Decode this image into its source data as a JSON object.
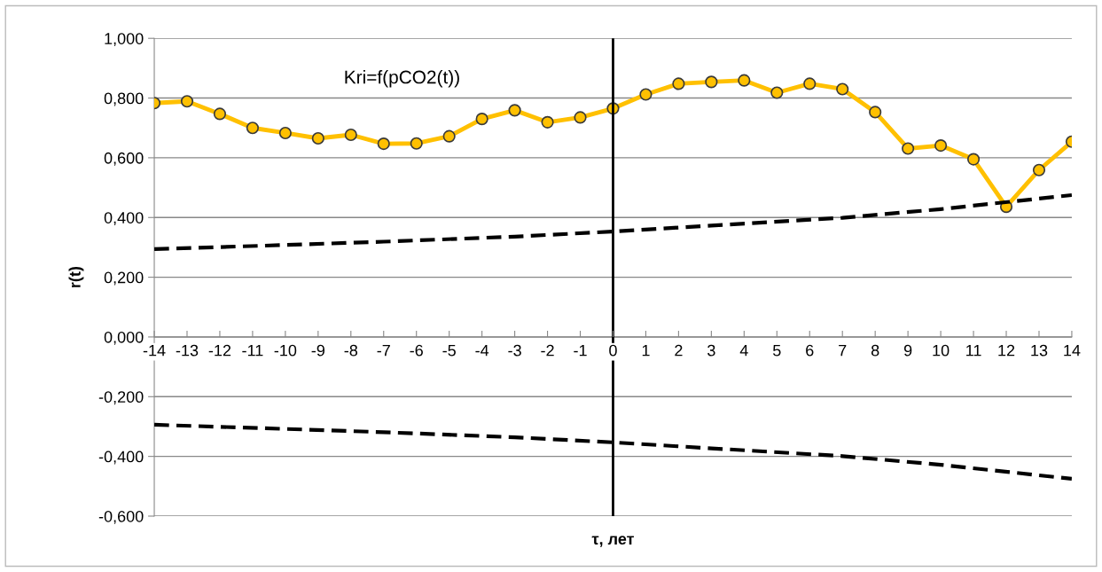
{
  "chart_data": {
    "type": "line",
    "title": "Kri=f(pCO2(t))",
    "xlabel": "τ, лет",
    "ylabel": "r(t)",
    "series": [
      {
        "color": "#ffc000",
        "marker": "circle",
        "line_style": "solid",
        "x": [
          -14,
          -13,
          -12,
          -11,
          -10,
          -9,
          -8,
          -7,
          -6,
          -5,
          -4,
          -3,
          -2,
          -1,
          0,
          1,
          2,
          3,
          4,
          5,
          6,
          7,
          8,
          9,
          10,
          11,
          12,
          13,
          14
        ],
        "values": [
          0.783,
          0.789,
          0.747,
          0.7,
          0.683,
          0.665,
          0.677,
          0.647,
          0.648,
          0.672,
          0.73,
          0.759,
          0.719,
          0.735,
          0.765,
          0.812,
          0.848,
          0.854,
          0.859,
          0.818,
          0.848,
          0.83,
          0.753,
          0.631,
          0.641,
          0.595,
          0.436,
          0.559,
          0.654
        ]
      },
      {
        "color": "#000000",
        "marker": "none",
        "line_style": "dashed",
        "x": [
          -14,
          -10,
          -7,
          -3,
          0,
          3,
          7,
          10,
          14
        ],
        "values": [
          0.294,
          0.308,
          0.319,
          0.336,
          0.353,
          0.373,
          0.399,
          0.428,
          0.475
        ]
      },
      {
        "color": "#000000",
        "marker": "none",
        "line_style": "dashed",
        "x": [
          -14,
          -10,
          -7,
          -3,
          0,
          3,
          7,
          10,
          14
        ],
        "values": [
          -0.294,
          -0.308,
          -0.319,
          -0.336,
          -0.353,
          -0.373,
          -0.399,
          -0.428,
          -0.475
        ]
      }
    ],
    "xlim": [
      -14,
      14
    ],
    "xticks": [
      -14,
      -13,
      -12,
      -11,
      -10,
      -9,
      -8,
      -7,
      -6,
      -5,
      -4,
      -3,
      -2,
      -1,
      0,
      1,
      2,
      3,
      4,
      5,
      6,
      7,
      8,
      9,
      10,
      11,
      12,
      13,
      14
    ],
    "ylim": [
      -0.6,
      1.0
    ],
    "yticks": [
      {
        "value": -0.6,
        "label": "-0,600"
      },
      {
        "value": -0.4,
        "label": "-0,400"
      },
      {
        "value": -0.2,
        "label": "-0,200"
      },
      {
        "value": 0,
        "label": "0,000"
      },
      {
        "value": 0.2,
        "label": "0,200"
      },
      {
        "value": 0.4,
        "label": "0,400"
      },
      {
        "value": 0.6,
        "label": "0,600"
      },
      {
        "value": 0.8,
        "label": "0,800"
      },
      {
        "value": 1.0,
        "label": "1,000"
      }
    ],
    "grid": "y",
    "legend": false,
    "ref_lines": [
      {
        "axis": "x",
        "value": 0,
        "color": "#000000",
        "line_style": "solid"
      }
    ]
  }
}
